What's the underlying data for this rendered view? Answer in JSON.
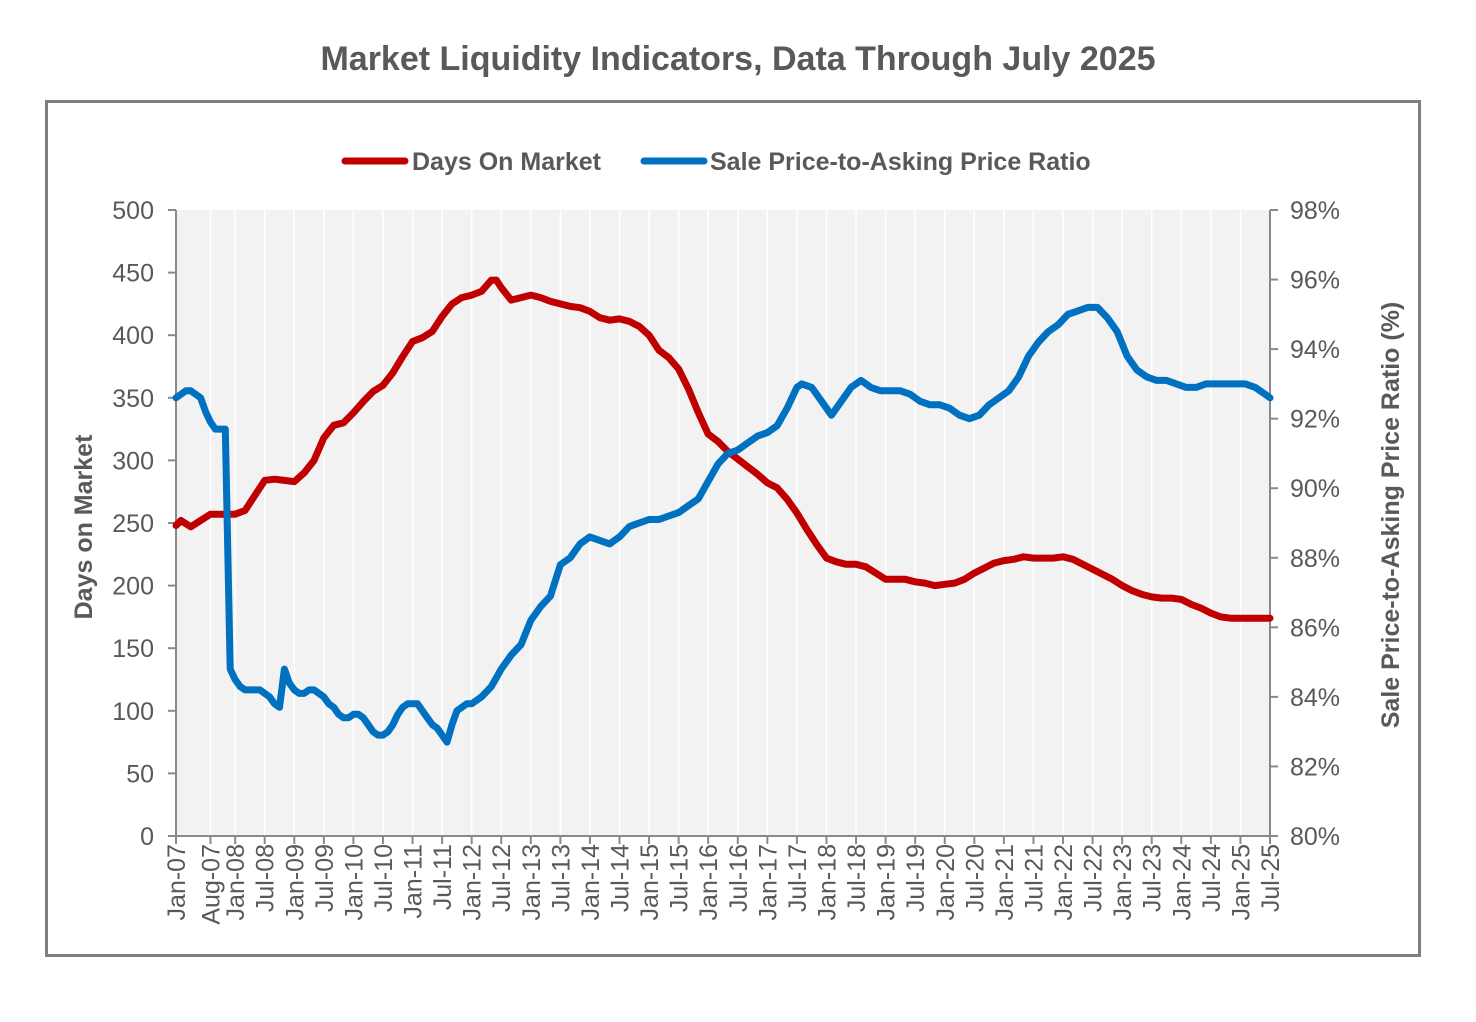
{
  "chart_data": {
    "type": "line",
    "title": "Market Liquidity Indicators, Data Through July 2025",
    "ylabel": "Days on Market",
    "y2label": "Sale Price-to-Asking Price Ratio (%)",
    "ylim": [
      0,
      500
    ],
    "y2lim": [
      80,
      98
    ],
    "yticks": [
      "0",
      "50",
      "100",
      "150",
      "200",
      "250",
      "300",
      "350",
      "400",
      "450",
      "500"
    ],
    "y2ticks": [
      "80%",
      "82%",
      "84%",
      "86%",
      "88%",
      "90%",
      "92%",
      "94%",
      "96%",
      "98%"
    ],
    "xticks": [
      "Jan-07",
      "Aug-07",
      "Jan-08",
      "Jul-08",
      "Jan-09",
      "Jul-09",
      "Jan-10",
      "Jul-10",
      "Jan-11",
      "Jul-11",
      "Jan-12",
      "Jul-12",
      "Jan-13",
      "Jul-13",
      "Jan-14",
      "Jul-14",
      "Jan-15",
      "Jul-15",
      "Jan-16",
      "Jul-16",
      "Jan-17",
      "Jul-17",
      "Jan-18",
      "Jul-18",
      "Jan-19",
      "Jul-19",
      "Jan-20",
      "Jul-20",
      "Jan-21",
      "Jul-21",
      "Jan-22",
      "Jul-22",
      "Jan-23",
      "Jul-23",
      "Jan-24",
      "Jul-24",
      "Jan-25",
      "Jul-25"
    ],
    "x_range_months": [
      0,
      222
    ],
    "legend_position": "top-center",
    "series": [
      {
        "name": "Days On Market",
        "axis": "left",
        "color": "#c00000",
        "points": [
          [
            0,
            248
          ],
          [
            1,
            252
          ],
          [
            3,
            247
          ],
          [
            5,
            252
          ],
          [
            7,
            257
          ],
          [
            10,
            257
          ],
          [
            12,
            257
          ],
          [
            14,
            260
          ],
          [
            16,
            272
          ],
          [
            18,
            284
          ],
          [
            20,
            285
          ],
          [
            22,
            284
          ],
          [
            24,
            283
          ],
          [
            26,
            290
          ],
          [
            28,
            300
          ],
          [
            30,
            318
          ],
          [
            32,
            328
          ],
          [
            34,
            330
          ],
          [
            36,
            338
          ],
          [
            38,
            347
          ],
          [
            40,
            355
          ],
          [
            42,
            360
          ],
          [
            44,
            370
          ],
          [
            46,
            383
          ],
          [
            48,
            395
          ],
          [
            50,
            398
          ],
          [
            52,
            403
          ],
          [
            54,
            415
          ],
          [
            56,
            425
          ],
          [
            58,
            430
          ],
          [
            60,
            432
          ],
          [
            62,
            435
          ],
          [
            64,
            444
          ],
          [
            65,
            444
          ],
          [
            66,
            438
          ],
          [
            68,
            428
          ],
          [
            70,
            430
          ],
          [
            72,
            432
          ],
          [
            74,
            430
          ],
          [
            76,
            427
          ],
          [
            78,
            425
          ],
          [
            80,
            423
          ],
          [
            82,
            422
          ],
          [
            84,
            419
          ],
          [
            86,
            414
          ],
          [
            88,
            412
          ],
          [
            90,
            413
          ],
          [
            92,
            411
          ],
          [
            94,
            407
          ],
          [
            96,
            400
          ],
          [
            98,
            388
          ],
          [
            100,
            382
          ],
          [
            102,
            373
          ],
          [
            104,
            357
          ],
          [
            106,
            338
          ],
          [
            108,
            321
          ],
          [
            110,
            315
          ],
          [
            112,
            307
          ],
          [
            114,
            301
          ],
          [
            116,
            295
          ],
          [
            118,
            289
          ],
          [
            120,
            282
          ],
          [
            122,
            278
          ],
          [
            124,
            269
          ],
          [
            126,
            258
          ],
          [
            128,
            245
          ],
          [
            130,
            233
          ],
          [
            132,
            222
          ],
          [
            134,
            219
          ],
          [
            136,
            217
          ],
          [
            138,
            217
          ],
          [
            140,
            215
          ],
          [
            142,
            210
          ],
          [
            144,
            205
          ],
          [
            146,
            205
          ],
          [
            148,
            205
          ],
          [
            150,
            203
          ],
          [
            152,
            202
          ],
          [
            154,
            200
          ],
          [
            156,
            201
          ],
          [
            158,
            202
          ],
          [
            160,
            205
          ],
          [
            162,
            210
          ],
          [
            164,
            214
          ],
          [
            166,
            218
          ],
          [
            168,
            220
          ],
          [
            170,
            221
          ],
          [
            172,
            223
          ],
          [
            174,
            222
          ],
          [
            176,
            222
          ],
          [
            178,
            222
          ],
          [
            180,
            223
          ],
          [
            182,
            221
          ],
          [
            184,
            217
          ],
          [
            186,
            213
          ],
          [
            188,
            209
          ],
          [
            190,
            205
          ],
          [
            192,
            200
          ],
          [
            194,
            196
          ],
          [
            196,
            193
          ],
          [
            198,
            191
          ],
          [
            200,
            190
          ],
          [
            202,
            190
          ],
          [
            204,
            189
          ],
          [
            206,
            185
          ],
          [
            208,
            182
          ],
          [
            210,
            178
          ],
          [
            212,
            175
          ],
          [
            214,
            174
          ],
          [
            216,
            174
          ],
          [
            218,
            174
          ],
          [
            220,
            174
          ],
          [
            222,
            174
          ]
        ]
      },
      {
        "name": "Sale Price-to-Asking Price Ratio",
        "axis": "right",
        "color": "#0070c0",
        "points": [
          [
            0,
            92.6
          ],
          [
            1,
            92.7
          ],
          [
            2,
            92.8
          ],
          [
            3,
            92.8
          ],
          [
            4,
            92.7
          ],
          [
            5,
            92.6
          ],
          [
            6,
            92.2
          ],
          [
            7,
            91.9
          ],
          [
            8,
            91.7
          ],
          [
            9,
            91.7
          ],
          [
            10,
            91.7
          ],
          [
            11,
            84.8
          ],
          [
            12,
            84.5
          ],
          [
            13,
            84.3
          ],
          [
            14,
            84.2
          ],
          [
            15,
            84.2
          ],
          [
            16,
            84.2
          ],
          [
            17,
            84.2
          ],
          [
            18,
            84.1
          ],
          [
            19,
            84.0
          ],
          [
            20,
            83.8
          ],
          [
            21,
            83.7
          ],
          [
            22,
            84.8
          ],
          [
            23,
            84.4
          ],
          [
            24,
            84.2
          ],
          [
            25,
            84.1
          ],
          [
            26,
            84.1
          ],
          [
            27,
            84.2
          ],
          [
            28,
            84.2
          ],
          [
            29,
            84.1
          ],
          [
            30,
            84.0
          ],
          [
            31,
            83.8
          ],
          [
            32,
            83.7
          ],
          [
            33,
            83.5
          ],
          [
            34,
            83.4
          ],
          [
            35,
            83.4
          ],
          [
            36,
            83.5
          ],
          [
            37,
            83.5
          ],
          [
            38,
            83.4
          ],
          [
            39,
            83.2
          ],
          [
            40,
            83.0
          ],
          [
            41,
            82.9
          ],
          [
            42,
            82.9
          ],
          [
            43,
            83.0
          ],
          [
            44,
            83.2
          ],
          [
            45,
            83.5
          ],
          [
            46,
            83.7
          ],
          [
            47,
            83.8
          ],
          [
            48,
            83.8
          ],
          [
            49,
            83.8
          ],
          [
            50,
            83.6
          ],
          [
            51,
            83.4
          ],
          [
            52,
            83.2
          ],
          [
            53,
            83.1
          ],
          [
            54,
            82.9
          ],
          [
            55,
            82.7
          ],
          [
            56,
            83.2
          ],
          [
            57,
            83.6
          ],
          [
            58,
            83.7
          ],
          [
            59,
            83.8
          ],
          [
            60,
            83.8
          ],
          [
            62,
            84.0
          ],
          [
            64,
            84.3
          ],
          [
            66,
            84.8
          ],
          [
            68,
            85.2
          ],
          [
            70,
            85.5
          ],
          [
            72,
            86.2
          ],
          [
            74,
            86.6
          ],
          [
            76,
            86.9
          ],
          [
            78,
            87.8
          ],
          [
            80,
            88.0
          ],
          [
            82,
            88.4
          ],
          [
            84,
            88.6
          ],
          [
            86,
            88.5
          ],
          [
            88,
            88.4
          ],
          [
            90,
            88.6
          ],
          [
            92,
            88.9
          ],
          [
            94,
            89.0
          ],
          [
            96,
            89.1
          ],
          [
            98,
            89.1
          ],
          [
            100,
            89.2
          ],
          [
            102,
            89.3
          ],
          [
            104,
            89.5
          ],
          [
            106,
            89.7
          ],
          [
            108,
            90.2
          ],
          [
            110,
            90.7
          ],
          [
            112,
            91.0
          ],
          [
            114,
            91.1
          ],
          [
            116,
            91.3
          ],
          [
            118,
            91.5
          ],
          [
            120,
            91.6
          ],
          [
            122,
            91.8
          ],
          [
            124,
            92.3
          ],
          [
            126,
            92.9
          ],
          [
            127,
            93.0
          ],
          [
            129,
            92.9
          ],
          [
            131,
            92.5
          ],
          [
            133,
            92.1
          ],
          [
            135,
            92.5
          ],
          [
            137,
            92.9
          ],
          [
            139,
            93.1
          ],
          [
            141,
            92.9
          ],
          [
            143,
            92.8
          ],
          [
            145,
            92.8
          ],
          [
            147,
            92.8
          ],
          [
            149,
            92.7
          ],
          [
            151,
            92.5
          ],
          [
            153,
            92.4
          ],
          [
            155,
            92.4
          ],
          [
            157,
            92.3
          ],
          [
            159,
            92.1
          ],
          [
            161,
            92.0
          ],
          [
            163,
            92.1
          ],
          [
            165,
            92.4
          ],
          [
            167,
            92.6
          ],
          [
            169,
            92.8
          ],
          [
            171,
            93.2
          ],
          [
            173,
            93.8
          ],
          [
            175,
            94.2
          ],
          [
            177,
            94.5
          ],
          [
            179,
            94.7
          ],
          [
            181,
            95.0
          ],
          [
            183,
            95.1
          ],
          [
            185,
            95.2
          ],
          [
            187,
            95.2
          ],
          [
            189,
            94.9
          ],
          [
            191,
            94.5
          ],
          [
            193,
            93.8
          ],
          [
            195,
            93.4
          ],
          [
            197,
            93.2
          ],
          [
            199,
            93.1
          ],
          [
            201,
            93.1
          ],
          [
            203,
            93.0
          ],
          [
            205,
            92.9
          ],
          [
            207,
            92.9
          ],
          [
            209,
            93.0
          ],
          [
            211,
            93.0
          ],
          [
            213,
            93.0
          ],
          [
            215,
            93.0
          ],
          [
            217,
            93.0
          ],
          [
            219,
            92.9
          ],
          [
            221,
            92.7
          ],
          [
            222,
            92.6
          ]
        ]
      }
    ]
  }
}
